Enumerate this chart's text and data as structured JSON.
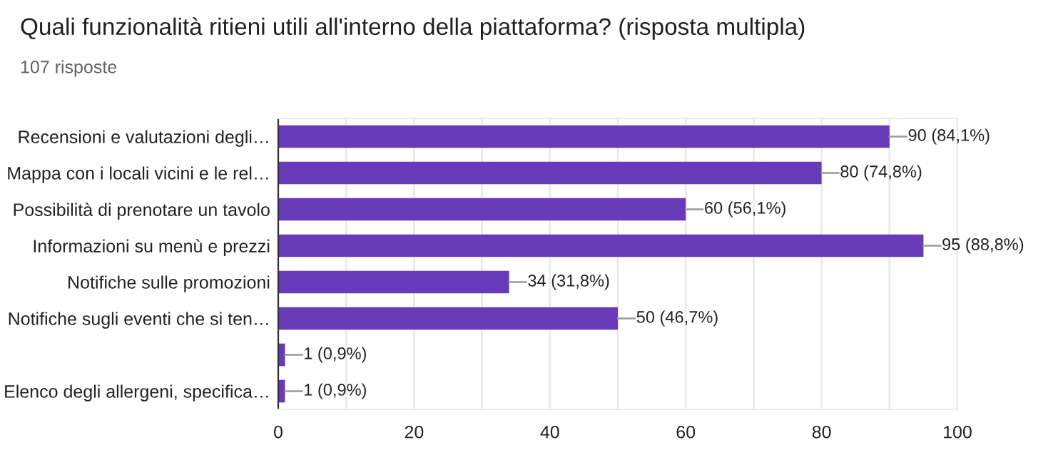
{
  "chart_data": {
    "type": "bar",
    "orientation": "horizontal",
    "title": "Quali funzionalità ritieni utili all'interno della piattaforma? (risposta multipla)",
    "subtitle": "107 risposte",
    "categories": [
      "Recensioni e valutazioni degli…",
      "Mappa con i locali vicini e le rel…",
      "Possibilità di prenotare un tavolo",
      "Informazioni su menù e prezzi",
      "Notifiche sulle promozioni",
      "Notifiche sugli eventi che si ten…",
      null,
      "Elenco degli allergeni, specifica…"
    ],
    "values": [
      90,
      80,
      60,
      95,
      34,
      50,
      1,
      1
    ],
    "value_labels": [
      "90 (84,1%)",
      "80 (74,8%)",
      "60 (56,1%)",
      "95 (88,8%)",
      "34 (31,8%)",
      "50 (46,7%)",
      "1 (0,9%)",
      "1 (0,9%)"
    ],
    "color": "#673ab7",
    "xlim": [
      0,
      100
    ],
    "xticks": [
      0,
      {
        "value": 10,
        "label": null
      },
      20,
      {
        "value": 30,
        "label": null
      },
      40,
      {
        "value": 50,
        "label": null
      },
      60,
      {
        "value": 70,
        "label": null
      },
      80,
      {
        "value": 90,
        "label": null
      },
      100
    ],
    "grid": "x",
    "legend": false
  }
}
